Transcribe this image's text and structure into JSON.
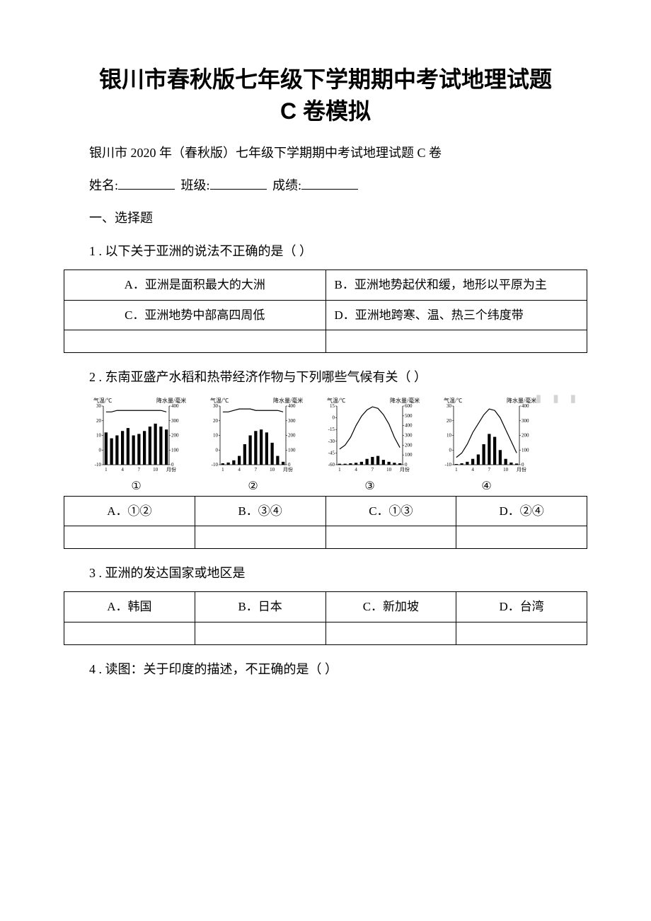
{
  "title_line1": "银川市春秋版七年级下学期期中考试地理试题",
  "title_line2": "C 卷模拟",
  "subtitle": "银川市 2020 年（春秋版）七年级下学期期中考试地理试题 C 卷",
  "form_labels": {
    "name": "姓名:",
    "class": "班级:",
    "score": "成绩:"
  },
  "section1": "一、选择题",
  "q1": {
    "text": "1 . 以下关于亚洲的说法不正确的是（ ）",
    "optA": "A．亚洲是面积最大的大洲",
    "optB": "B．亚洲地势起伏和缓，地形以平原为主",
    "optC": "C．亚洲地势中部高四周低",
    "optD": "D．亚洲地跨寒、温、热三个纬度带"
  },
  "q2": {
    "text": "2 . 东南亚盛产水稻和热带经济作物与下列哪些气候有关（ ）",
    "optA": "A．①②",
    "optB": "B．③④",
    "optC": "C．①③",
    "optD": "D．②④",
    "chart_labels": [
      "①",
      "②",
      "③",
      "④"
    ],
    "watermark": "▮ ▮ ▮"
  },
  "q3": {
    "text": "3 . 亚洲的发达国家或地区是",
    "optA": "A．韩国",
    "optB": "B．日本",
    "optC": "C．新加坡",
    "optD": "D．台湾"
  },
  "q4": {
    "text": "4 . 读图：关于印度的描述，不正确的是（ ）"
  },
  "chart_common": {
    "axis_left_label": "气温/℃",
    "axis_right_label": "降水量/毫米",
    "x_axis_label": "月份",
    "axis_color": "#000000",
    "bar_color": "#000000",
    "line_color": "#000000",
    "label_fontsize": 8,
    "tick_fontsize": 7
  },
  "chart1": {
    "type": "climate",
    "temp_y": [
      26,
      26,
      27,
      27,
      27,
      27,
      27,
      27,
      27,
      27,
      27,
      26
    ],
    "temp_ylim": [
      -10,
      30
    ],
    "temp_ticks": [
      -10,
      0,
      10,
      20,
      30
    ],
    "precip_y": [
      220,
      180,
      200,
      230,
      250,
      200,
      210,
      230,
      260,
      280,
      260,
      240
    ],
    "precip_ylim": [
      0,
      400
    ],
    "precip_ticks": [
      0,
      100,
      200,
      300,
      400
    ]
  },
  "chart2": {
    "type": "climate",
    "temp_y": [
      26,
      26,
      27,
      28,
      28,
      28,
      27,
      27,
      27,
      27,
      27,
      26
    ],
    "temp_ylim": [
      -10,
      30
    ],
    "temp_ticks": [
      -10,
      0,
      10,
      20,
      30
    ],
    "precip_y": [
      10,
      15,
      30,
      60,
      140,
      200,
      230,
      240,
      220,
      150,
      60,
      20
    ],
    "precip_ylim": [
      0,
      400
    ],
    "precip_ticks": [
      0,
      100,
      200,
      300,
      400
    ]
  },
  "chart3": {
    "type": "climate",
    "temp_y": [
      -40,
      -35,
      -25,
      -10,
      2,
      10,
      14,
      12,
      4,
      -8,
      -25,
      -38
    ],
    "temp_ylim": [
      -60,
      15
    ],
    "temp_ticks": [
      -60,
      -45,
      -30,
      -15,
      0,
      15
    ],
    "precip_y": [
      10,
      10,
      15,
      20,
      30,
      60,
      80,
      90,
      50,
      30,
      20,
      15
    ],
    "precip_ylim": [
      0,
      600
    ],
    "precip_ticks": [
      0,
      100,
      200,
      300,
      400,
      500,
      600
    ]
  },
  "chart4": {
    "type": "climate",
    "temp_y": [
      -5,
      -2,
      4,
      12,
      18,
      24,
      28,
      27,
      22,
      14,
      6,
      -2
    ],
    "temp_ylim": [
      -10,
      30
    ],
    "temp_ticks": [
      -10,
      0,
      10,
      20,
      30
    ],
    "precip_y": [
      5,
      10,
      20,
      40,
      70,
      140,
      210,
      190,
      100,
      40,
      15,
      8
    ],
    "precip_ylim": [
      0,
      400
    ],
    "precip_ticks": [
      0,
      100,
      200,
      300,
      400
    ]
  }
}
